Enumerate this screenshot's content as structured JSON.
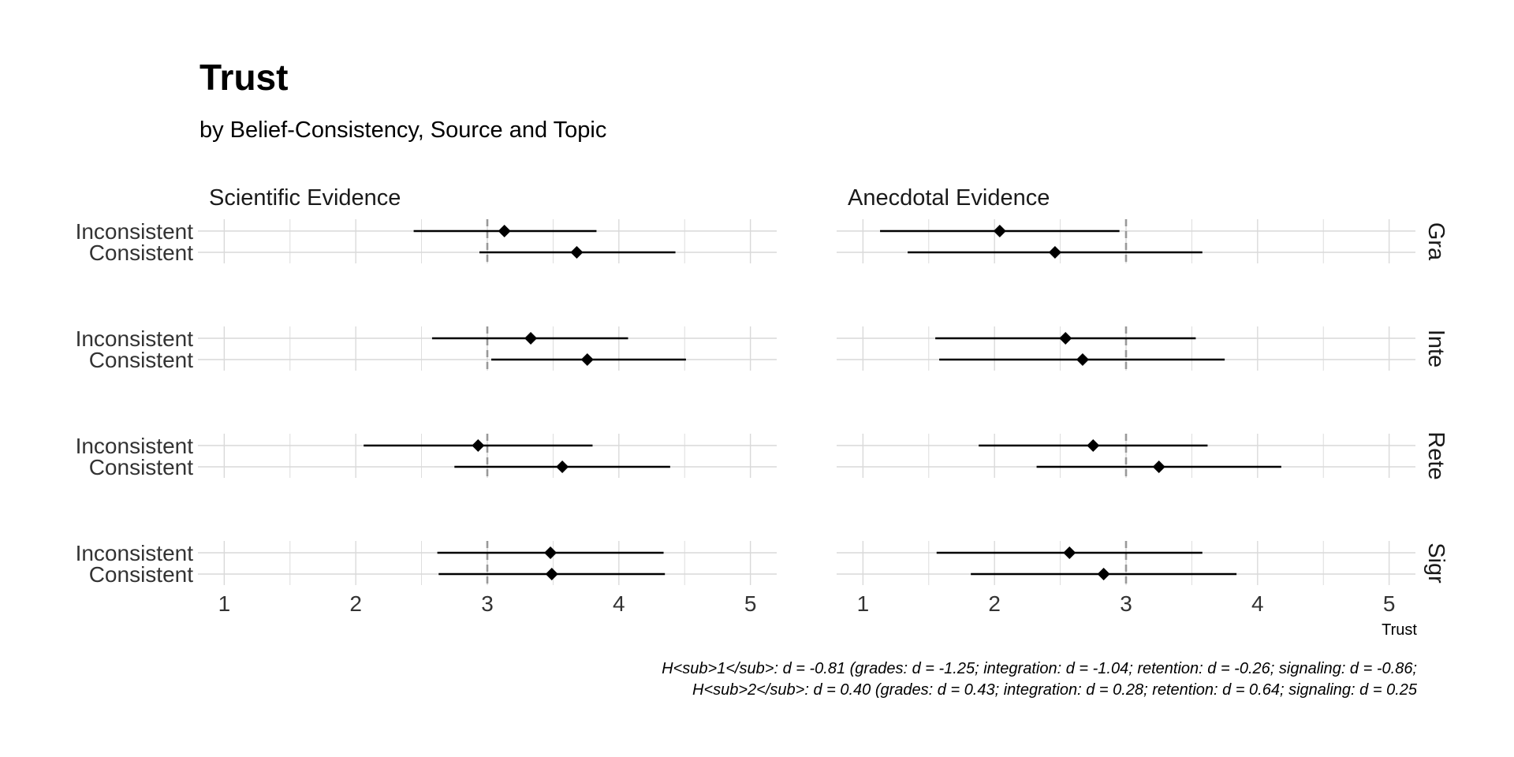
{
  "chart_data": {
    "type": "forest",
    "title": "Trust",
    "subtitle": "by Belief-Consistency, Source and Topic",
    "xlabel": "Trust",
    "xlim": [
      0.8,
      5.2
    ],
    "xticks": [
      1,
      2,
      3,
      4,
      5
    ],
    "reference_line": 3,
    "columns": [
      "Scientific Evidence",
      "Anecdotal Evidence"
    ],
    "rows": [
      "Grades",
      "Integration",
      "Retention",
      "Signaling"
    ],
    "row_strip_labels_visible": [
      "Gra",
      "Inte",
      "Rete",
      "Sigr"
    ],
    "categories": [
      "Inconsistent",
      "Consistent"
    ],
    "panels": [
      {
        "column": "Scientific Evidence",
        "row": "Grades",
        "points": [
          {
            "category": "Inconsistent",
            "mean": 3.13,
            "low": 2.44,
            "high": 3.83
          },
          {
            "category": "Consistent",
            "mean": 3.68,
            "low": 2.94,
            "high": 4.43
          }
        ]
      },
      {
        "column": "Anecdotal Evidence",
        "row": "Grades",
        "points": [
          {
            "category": "Inconsistent",
            "mean": 2.04,
            "low": 1.13,
            "high": 2.95
          },
          {
            "category": "Consistent",
            "mean": 2.46,
            "low": 1.34,
            "high": 3.58
          }
        ]
      },
      {
        "column": "Scientific Evidence",
        "row": "Integration",
        "points": [
          {
            "category": "Inconsistent",
            "mean": 3.33,
            "low": 2.58,
            "high": 4.07
          },
          {
            "category": "Consistent",
            "mean": 3.76,
            "low": 3.03,
            "high": 4.51
          }
        ]
      },
      {
        "column": "Anecdotal Evidence",
        "row": "Integration",
        "points": [
          {
            "category": "Inconsistent",
            "mean": 2.54,
            "low": 1.55,
            "high": 3.53
          },
          {
            "category": "Consistent",
            "mean": 2.67,
            "low": 1.58,
            "high": 3.75
          }
        ]
      },
      {
        "column": "Scientific Evidence",
        "row": "Retention",
        "points": [
          {
            "category": "Inconsistent",
            "mean": 2.93,
            "low": 2.06,
            "high": 3.8
          },
          {
            "category": "Consistent",
            "mean": 3.57,
            "low": 2.75,
            "high": 4.39
          }
        ]
      },
      {
        "column": "Anecdotal Evidence",
        "row": "Retention",
        "points": [
          {
            "category": "Inconsistent",
            "mean": 2.75,
            "low": 1.88,
            "high": 3.62
          },
          {
            "category": "Consistent",
            "mean": 3.25,
            "low": 2.32,
            "high": 4.18
          }
        ]
      },
      {
        "column": "Scientific Evidence",
        "row": "Signaling",
        "points": [
          {
            "category": "Inconsistent",
            "mean": 3.48,
            "low": 2.62,
            "high": 4.34
          },
          {
            "category": "Consistent",
            "mean": 3.49,
            "low": 2.63,
            "high": 4.35
          }
        ]
      },
      {
        "column": "Anecdotal Evidence",
        "row": "Signaling",
        "points": [
          {
            "category": "Inconsistent",
            "mean": 2.57,
            "low": 1.56,
            "high": 3.58
          },
          {
            "category": "Consistent",
            "mean": 2.83,
            "low": 1.82,
            "high": 3.84
          }
        ]
      }
    ],
    "caption": [
      "H<sub>1</sub>: d = -0.81 (grades: d = -1.25; integration: d = -1.04; retention: d = -0.26; signaling: d = -0.86;",
      "H<sub>2</sub>: d = 0.40 (grades: d = 0.43; integration: d = 0.28; retention: d = 0.64; signaling: d = 0.25"
    ],
    "grid": true,
    "point_shape": "diamond",
    "colors": {
      "points": "#000000",
      "grid": "#d9d9d9",
      "reference": "#999999"
    }
  }
}
